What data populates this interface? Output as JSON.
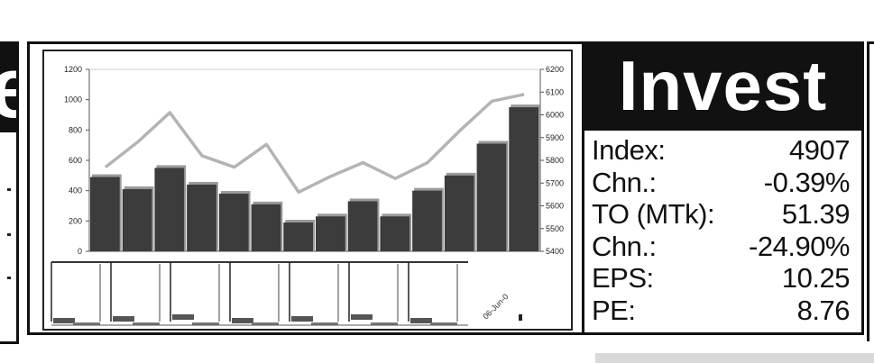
{
  "header": {
    "partial_title": "e"
  },
  "invest": {
    "title": "Invest",
    "stats": [
      {
        "label": "Index:",
        "value": "4907"
      },
      {
        "label": "Chn.:",
        "value": "-0.39%"
      },
      {
        "label": "TO (MTk):",
        "value": "51.39"
      },
      {
        "label": "Chn.:",
        "value": "-24.90%"
      },
      {
        "label": "EPS:",
        "value": "10.25"
      },
      {
        "label": "PE:",
        "value": "8.76"
      }
    ]
  },
  "chart_data": {
    "type": "bar",
    "y_left_ticks": [
      "1200",
      "1000",
      "800",
      "600",
      "400",
      "200",
      "0"
    ],
    "y_right_ticks": [
      "6200",
      "6100",
      "6000",
      "5900",
      "5800",
      "5700",
      "5600",
      "5500",
      "5400"
    ],
    "ylim_left": [
      0,
      1200
    ],
    "ylim_right": [
      5400,
      6200
    ],
    "series": [
      {
        "axis": "left",
        "type": "bar",
        "color": "#3c3c3c",
        "values": [
          490,
          410,
          550,
          440,
          380,
          310,
          190,
          230,
          330,
          230,
          400,
          500,
          710,
          950
        ]
      },
      {
        "axis": "right",
        "type": "line",
        "color": "#b4b4b4",
        "values": [
          5770,
          5880,
          6010,
          5820,
          5770,
          5870,
          5660,
          5730,
          5790,
          5720,
          5790,
          5930,
          6060,
          6090
        ]
      }
    ],
    "x_label_fragment": "06-Jun-0",
    "grid": false
  },
  "colors": {
    "panel_header_bg": "#111111",
    "panel_header_text": "#ffffff",
    "bar": "#3c3c3c",
    "line": "#b4b4b4"
  }
}
